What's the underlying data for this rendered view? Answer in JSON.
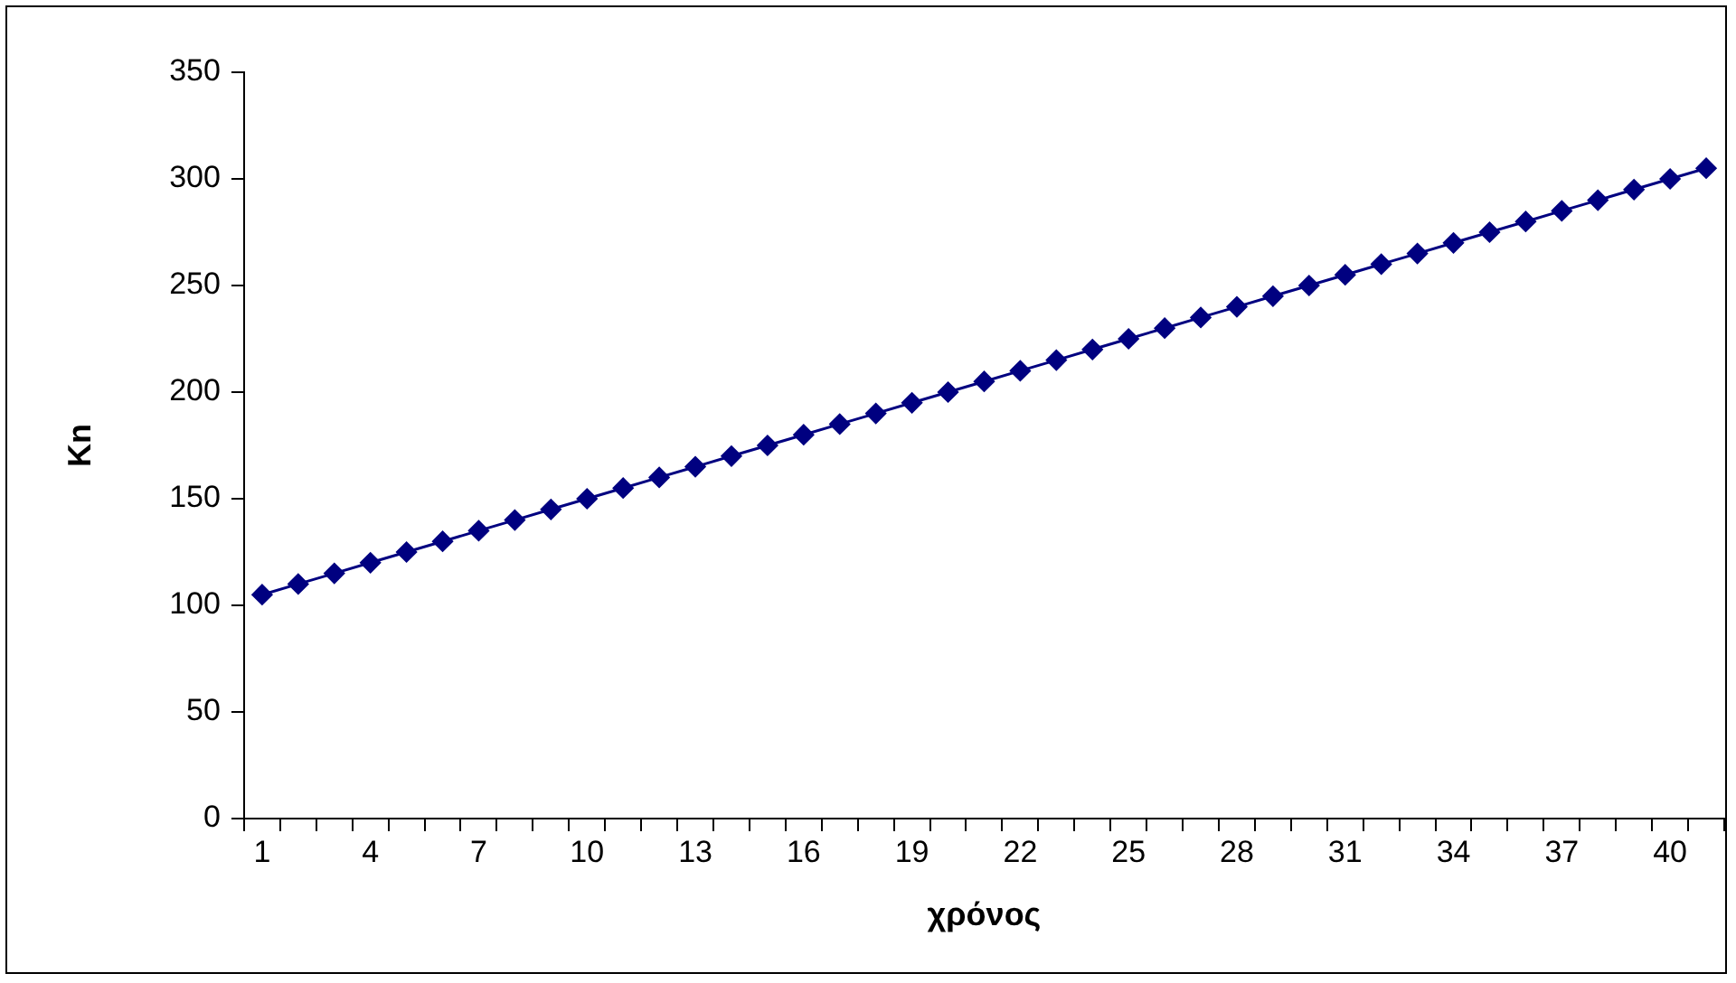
{
  "chart_data": {
    "type": "line",
    "xlabel": "χρόνος",
    "ylabel": "Kn",
    "categories": [
      "1",
      null,
      null,
      "4",
      null,
      null,
      "7",
      null,
      null,
      "10",
      null,
      null,
      "13",
      null,
      null,
      "16",
      null,
      null,
      "19",
      null,
      null,
      "22",
      null,
      null,
      "25",
      null,
      null,
      "28",
      null,
      null,
      "31",
      null,
      null,
      "34",
      null,
      null,
      "37",
      null,
      null,
      "40",
      null
    ],
    "values": [
      105,
      110,
      115,
      120,
      125,
      130,
      135,
      140,
      145,
      150,
      155,
      160,
      165,
      170,
      175,
      180,
      185,
      190,
      195,
      200,
      205,
      210,
      215,
      220,
      225,
      230,
      235,
      240,
      245,
      250,
      255,
      260,
      265,
      270,
      275,
      280,
      285,
      290,
      295,
      300,
      305
    ],
    "color": "#000080",
    "marker": "diamond",
    "line_style": "solid",
    "ylim": [
      0,
      350
    ],
    "yticks": [
      0,
      50,
      100,
      150,
      200,
      250,
      300,
      350
    ]
  }
}
